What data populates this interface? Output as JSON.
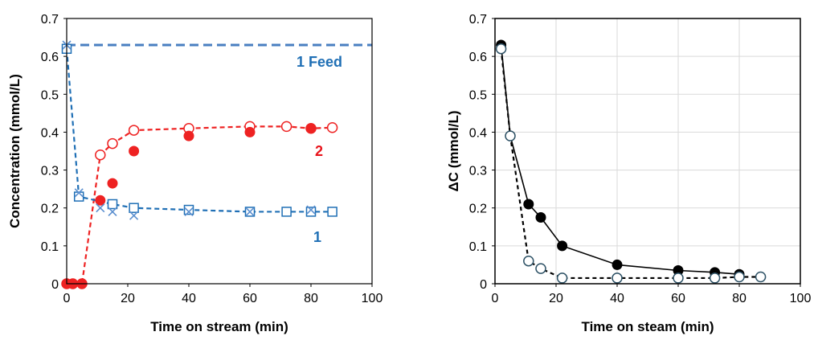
{
  "chart_data": [
    {
      "type": "scatter",
      "xlabel": "Time on stream (min)",
      "ylabel": "Concentration (mmol/L)",
      "xlim": [
        0,
        100
      ],
      "ylim": [
        0,
        0.7
      ],
      "xticks": [
        "0",
        "20",
        "40",
        "60",
        "80",
        "100"
      ],
      "yticks": [
        "0",
        "0.1",
        "0.2",
        "0.3",
        "0.4",
        "0.5",
        "0.6",
        "0.7"
      ],
      "grid": false,
      "feed_line": {
        "y": 0.63,
        "color": "#4a7fc1"
      },
      "annotations": [
        {
          "text": "1 Feed",
          "color": "#1f6fb5"
        },
        {
          "text": "2",
          "color": "#e8141b"
        },
        {
          "text": "1",
          "color": "#1f6fb5"
        }
      ],
      "series": [
        {
          "marker": "open-circle",
          "line": "dashed",
          "color": "#ee2222",
          "x": [
            0,
            2,
            5,
            11,
            15,
            22,
            40,
            60,
            72,
            80,
            87
          ],
          "y": [
            0,
            0,
            0,
            0.34,
            0.37,
            0.405,
            0.41,
            0.415,
            0.415,
            0.41,
            0.412
          ]
        },
        {
          "marker": "filled-circle",
          "line": "none",
          "color": "#ee2222",
          "x": [
            0,
            2,
            5,
            11,
            15,
            22,
            40,
            60,
            80
          ],
          "y": [
            0,
            0,
            0,
            0.22,
            0.265,
            0.35,
            0.39,
            0.4,
            0.41
          ]
        },
        {
          "marker": "open-square",
          "line": "dashed",
          "color": "#1f6fb5",
          "x": [
            0,
            4,
            15,
            22,
            40,
            60,
            72,
            80,
            87
          ],
          "y": [
            0.62,
            0.23,
            0.21,
            0.2,
            0.195,
            0.19,
            0.19,
            0.19,
            0.19
          ]
        },
        {
          "marker": "cross",
          "line": "none",
          "color": "#5b8fcf",
          "x": [
            0,
            4,
            11,
            15,
            22,
            40,
            60,
            80
          ],
          "y": [
            0.63,
            0.24,
            0.2,
            0.19,
            0.18,
            0.19,
            0.19,
            0.195
          ]
        }
      ]
    },
    {
      "type": "line",
      "xlabel": "Time on steam (min)",
      "ylabel": "ΔC  (mmol/L)",
      "xlim": [
        0,
        100
      ],
      "ylim": [
        0,
        0.7
      ],
      "xticks": [
        "0",
        "20",
        "40",
        "60",
        "80",
        "100"
      ],
      "yticks": [
        "0",
        "0.1",
        "0.2",
        "0.3",
        "0.4",
        "0.5",
        "0.6",
        "0.7"
      ],
      "grid": true,
      "series": [
        {
          "marker": "filled-circle",
          "line": "solid",
          "color": "#000000",
          "x": [
            2,
            5,
            11,
            15,
            22,
            40,
            60,
            72,
            80
          ],
          "y": [
            0.63,
            0.39,
            0.21,
            0.175,
            0.1,
            0.05,
            0.035,
            0.03,
            0.025
          ]
        },
        {
          "marker": "open-circle-grey",
          "line": "dashed",
          "color": "#000000",
          "x": [
            2,
            5,
            11,
            15,
            22,
            40,
            60,
            72,
            80,
            87
          ],
          "y": [
            0.62,
            0.39,
            0.06,
            0.04,
            0.015,
            0.015,
            0.015,
            0.015,
            0.018,
            0.018
          ]
        }
      ]
    }
  ]
}
